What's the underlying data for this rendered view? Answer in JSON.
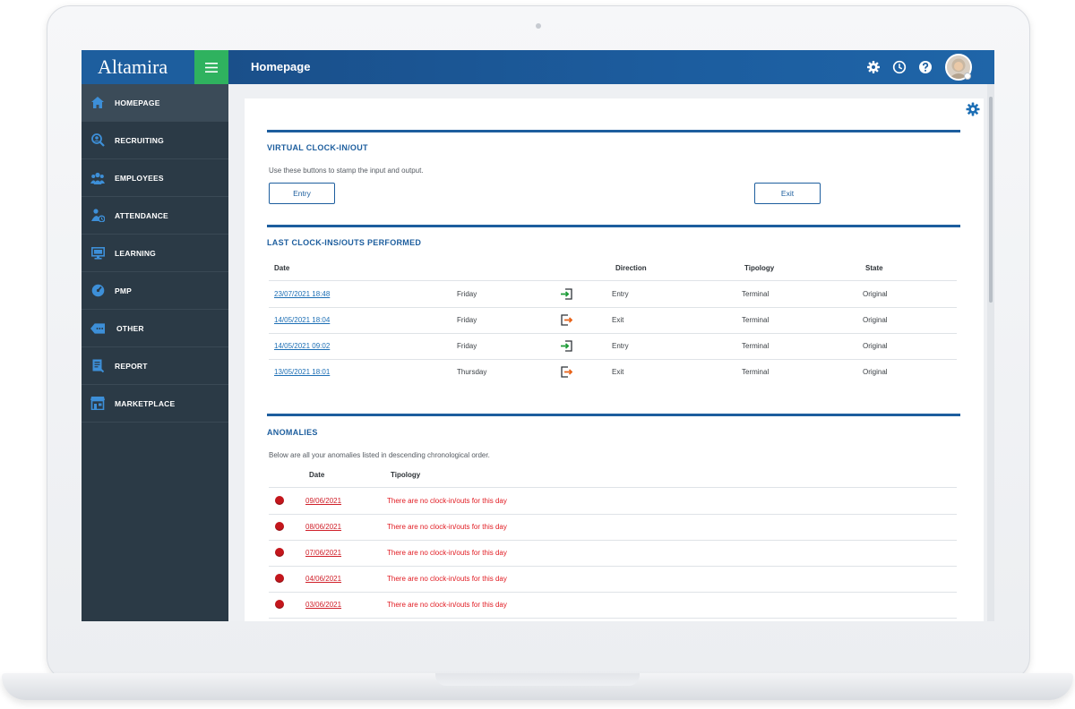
{
  "app": {
    "logo": "Altamira",
    "page_title": "Homepage"
  },
  "sidebar": {
    "items": [
      {
        "label": "HOMEPAGE",
        "icon": "home-icon",
        "active": true
      },
      {
        "label": "RECRUITING",
        "icon": "recruiting-search-person-icon"
      },
      {
        "label": "EMPLOYEES",
        "icon": "employees-group-icon"
      },
      {
        "label": "ATTENDANCE",
        "icon": "attendance-person-clock-icon"
      },
      {
        "label": "LEARNING",
        "icon": "learning-monitor-icon"
      },
      {
        "label": "PMP",
        "icon": "pmp-gauge-icon"
      },
      {
        "label": "OTHER",
        "icon": "other-tag-icon"
      },
      {
        "label": "REPORT",
        "icon": "report-document-icon"
      },
      {
        "label": "MARKETPLACE",
        "icon": "marketplace-store-icon"
      }
    ]
  },
  "topbar_icons": [
    "gear-icon",
    "clock-icon",
    "help-icon",
    "user-avatar"
  ],
  "virtual_clock": {
    "title": "VIRTUAL CLOCK-IN/OUT",
    "hint": "Use these buttons to stamp the input and output.",
    "entry_label": "Entry",
    "exit_label": "Exit"
  },
  "last_clock": {
    "title": "LAST CLOCK-INS/OUTS PERFORMED",
    "headers": {
      "date": "Date",
      "direction": "Direction",
      "tipology": "Tipology",
      "state": "State"
    },
    "rows": [
      {
        "date": "23/07/2021 18:48",
        "day": "Friday",
        "direction": "Entry",
        "tipology": "Terminal",
        "state": "Original"
      },
      {
        "date": "14/05/2021 18:04",
        "day": "Friday",
        "direction": "Exit",
        "tipology": "Terminal",
        "state": "Original"
      },
      {
        "date": "14/05/2021 09:02",
        "day": "Friday",
        "direction": "Entry",
        "tipology": "Terminal",
        "state": "Original"
      },
      {
        "date": "13/05/2021 18:01",
        "day": "Thursday",
        "direction": "Exit",
        "tipology": "Terminal",
        "state": "Original"
      }
    ]
  },
  "anomalies": {
    "title": "ANOMALIES",
    "hint": "Below are all your anomalies listed in descending chronological order.",
    "headers": {
      "date": "Date",
      "tipology": "Tipology"
    },
    "rows": [
      {
        "date": "09/06/2021",
        "tipology": "There are no clock-in/outs for this day"
      },
      {
        "date": "08/06/2021",
        "tipology": "There are no clock-in/outs for this day"
      },
      {
        "date": "07/06/2021",
        "tipology": "There are no clock-in/outs for this day"
      },
      {
        "date": "04/06/2021",
        "tipology": "There are no clock-in/outs for this day"
      },
      {
        "date": "03/06/2021",
        "tipology": "There are no clock-in/outs for this day"
      }
    ]
  },
  "colors": {
    "brand_blue": "#1d5e9e",
    "menu_green": "#2fb25f",
    "sidebar_bg": "#2b3a46",
    "anomaly_red": "#e11b22",
    "entry_green": "#1f9d3a",
    "exit_orange": "#e8641b"
  }
}
